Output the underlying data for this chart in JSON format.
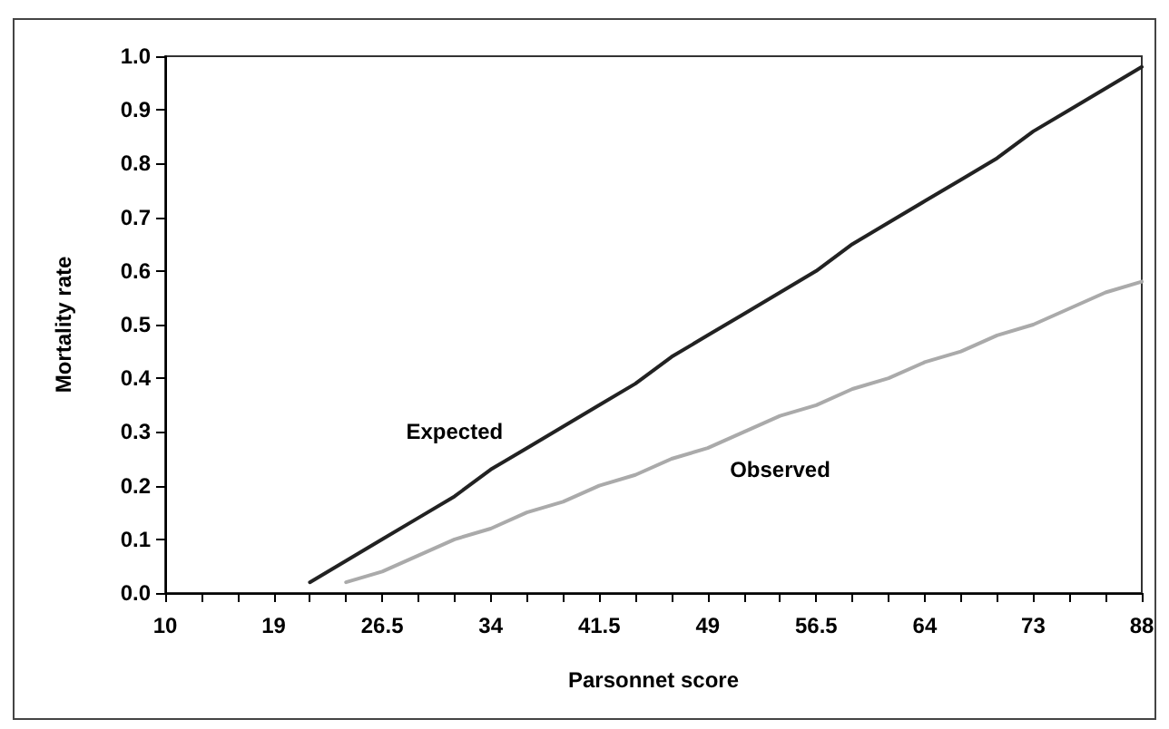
{
  "chart_data": {
    "type": "line",
    "xlabel": "Parsonnet score",
    "ylabel": "Mortality rate",
    "categories": [
      "10",
      null,
      null,
      "19",
      null,
      null,
      "26.5",
      null,
      null,
      "34",
      null,
      null,
      "41.5",
      null,
      null,
      "49",
      null,
      null,
      "56.5",
      null,
      null,
      "64",
      null,
      null,
      "73",
      null,
      null,
      "88"
    ],
    "series": [
      {
        "name": "Expected",
        "color": "#222222",
        "values": [
          null,
          null,
          null,
          null,
          0.02,
          0.06,
          0.1,
          0.14,
          0.18,
          0.23,
          0.27,
          0.31,
          0.35,
          0.39,
          0.44,
          0.48,
          0.52,
          0.56,
          0.6,
          0.65,
          0.69,
          0.73,
          0.77,
          0.81,
          0.86,
          0.9,
          0.94,
          0.98
        ]
      },
      {
        "name": "Observed",
        "color": "#aaaaaa",
        "values": [
          null,
          null,
          null,
          null,
          null,
          0.02,
          0.04,
          0.07,
          0.1,
          0.12,
          0.15,
          0.17,
          0.2,
          0.22,
          0.25,
          0.27,
          0.3,
          0.33,
          0.35,
          0.38,
          0.4,
          0.43,
          0.45,
          0.48,
          0.5,
          0.53,
          0.56,
          0.58
        ]
      }
    ],
    "ylim": [
      0,
      1
    ],
    "yticks": [
      {
        "value": 0,
        "label": "0.0"
      },
      0.1,
      0.2,
      0.3,
      0.4,
      0.5,
      0.6,
      0.7,
      0.8,
      0.9,
      {
        "value": 1,
        "label": "1.0"
      }
    ],
    "grid": false,
    "legend": false,
    "marker": "none",
    "line_style": "solid"
  }
}
